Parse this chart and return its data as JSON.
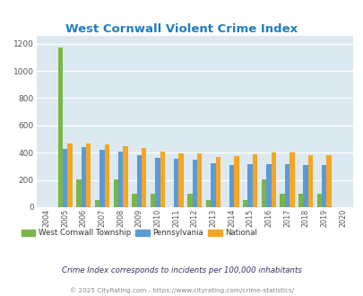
{
  "title": "West Cornwall Violent Crime Index",
  "years": [
    2004,
    2005,
    2006,
    2007,
    2008,
    2009,
    2010,
    2011,
    2012,
    2013,
    2014,
    2015,
    2016,
    2017,
    2018,
    2019,
    2020
  ],
  "west_cornwall": [
    0,
    1175,
    205,
    50,
    205,
    100,
    100,
    0,
    100,
    50,
    0,
    50,
    205,
    100,
    100,
    100,
    0
  ],
  "pennsylvania": [
    0,
    425,
    440,
    420,
    410,
    380,
    365,
    355,
    350,
    325,
    310,
    315,
    315,
    315,
    310,
    308,
    0
  ],
  "national": [
    0,
    465,
    465,
    460,
    450,
    432,
    405,
    395,
    395,
    370,
    375,
    390,
    400,
    400,
    380,
    380,
    0
  ],
  "color_wc": "#7ab648",
  "color_pa": "#5b9bd5",
  "color_nat": "#f5a623",
  "bg_color": "#dce9f0",
  "ylim": [
    0,
    1260
  ],
  "yticks": [
    0,
    200,
    400,
    600,
    800,
    1000,
    1200
  ],
  "title_color": "#1f7ec2",
  "legend_labels": [
    "West Cornwall Township",
    "Pennsylvania",
    "National"
  ],
  "footnote1": "Crime Index corresponds to incidents per 100,000 inhabitants",
  "footnote2": "© 2025 CityRating.com - https://www.cityrating.com/crime-statistics/",
  "footnote1_color": "#333366",
  "footnote2_color": "#888888"
}
